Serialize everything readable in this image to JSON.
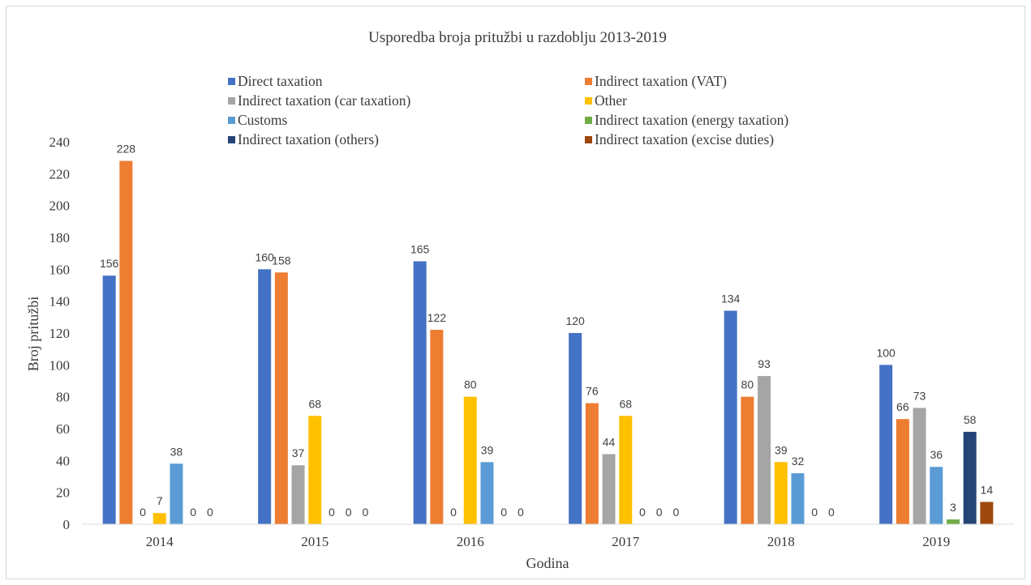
{
  "chart_data": {
    "type": "bar",
    "title": "Usporedba broja pritužbi u razdoblju 2013-2019",
    "xlabel": "Godina",
    "ylabel": "Broj pritužbi",
    "ylim": [
      0,
      240
    ],
    "y_ticks": [
      "0",
      "20",
      "40",
      "60",
      "80",
      "100",
      "120",
      "140",
      "160",
      "180",
      "200",
      "220",
      "240"
    ],
    "categories": [
      "2014",
      "2015",
      "2016",
      "2017",
      "2018",
      "2019"
    ],
    "grid": false,
    "legend_position": "top",
    "series": [
      {
        "name": "Direct taxation",
        "color": "#4472C4",
        "values": [
          156,
          160,
          165,
          120,
          134,
          100
        ],
        "labels": [
          "156",
          "160",
          "165",
          "120",
          "134",
          "100"
        ]
      },
      {
        "name": "Indirect taxation (VAT)",
        "color": "#ED7D31",
        "values": [
          228,
          158,
          122,
          76,
          80,
          66
        ],
        "labels": [
          "228",
          "158",
          "122",
          "76",
          "80",
          "66"
        ]
      },
      {
        "name": "Indirect taxation (car taxation)",
        "color": "#A5A5A5",
        "values": [
          0,
          37,
          0,
          44,
          93,
          73
        ],
        "labels": [
          "0",
          "37",
          "0",
          "44",
          "93",
          "73"
        ]
      },
      {
        "name": "Other",
        "color": "#FFC000",
        "values": [
          7,
          68,
          80,
          68,
          39,
          0
        ],
        "labels": [
          "7",
          "68",
          "80",
          "68",
          "39",
          "0"
        ]
      },
      {
        "name": "Customs",
        "color": "#5B9BD5",
        "values": [
          38,
          0,
          39,
          0,
          32,
          36
        ],
        "labels": [
          "38",
          "0",
          "39",
          "0",
          "32",
          "36"
        ]
      },
      {
        "name": "Indirect taxation (energy taxation)",
        "color": "#70AD47",
        "values": [
          0,
          0,
          0,
          0,
          0,
          3
        ],
        "labels": [
          "0",
          "0",
          "0",
          "0",
          "0",
          "3"
        ]
      },
      {
        "name": "Indirect taxation (others)",
        "color": "#264478",
        "values": [
          0,
          0,
          0,
          0,
          0,
          58
        ],
        "labels": [
          "0",
          "0",
          "0",
          "0",
          "0",
          "58"
        ]
      },
      {
        "name": "Indirect taxation (excise duties)",
        "color": "#9E480E",
        "values": [
          0,
          0,
          0,
          0,
          0,
          14
        ],
        "labels": [
          "0",
          "0",
          "0",
          "0",
          "0",
          "14"
        ]
      }
    ],
    "visible_bars": [
      [
        0,
        1,
        2,
        3,
        4,
        5,
        6
      ],
      [
        0,
        1,
        2,
        3,
        4,
        5,
        6
      ],
      [
        0,
        1,
        2,
        3,
        4,
        5,
        6
      ],
      [
        0,
        1,
        2,
        3,
        4,
        5,
        6
      ],
      [
        0,
        1,
        2,
        3,
        4,
        5,
        6
      ],
      [
        0,
        1,
        2,
        4,
        5,
        6,
        7
      ]
    ]
  }
}
